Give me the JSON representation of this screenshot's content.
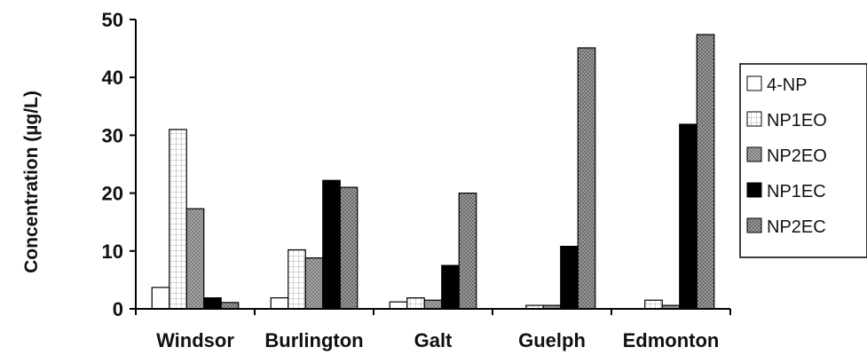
{
  "chart_data": {
    "type": "bar",
    "title": "",
    "xlabel": "",
    "ylabel": "Concentration (µg/L)",
    "ylim": [
      0,
      50
    ],
    "yticks": [
      0,
      10,
      20,
      30,
      40,
      50
    ],
    "grid": false,
    "legend_position": "right",
    "categories": [
      "Windsor",
      "Burlington",
      "Galt",
      "Guelph",
      "Edmonton"
    ],
    "series": [
      {
        "name": "4-NP",
        "values": [
          3.7,
          1.9,
          1.2,
          0.0,
          0.0
        ],
        "fill": "white",
        "color": "#ffffff"
      },
      {
        "name": "NP1EO",
        "values": [
          31.0,
          10.2,
          1.9,
          0.6,
          1.5
        ],
        "fill": "grid",
        "color": "#ffffff"
      },
      {
        "name": "NP2EO",
        "values": [
          17.3,
          8.8,
          1.5,
          0.6,
          0.6
        ],
        "fill": "dots",
        "color": "#9a9a9a"
      },
      {
        "name": "NP1EC",
        "values": [
          1.9,
          22.2,
          7.5,
          10.8,
          31.9
        ],
        "fill": "black",
        "color": "#000000"
      },
      {
        "name": "NP2EC",
        "values": [
          1.1,
          21.0,
          20.0,
          45.1,
          47.4
        ],
        "fill": "dots",
        "color": "#8c8c8c"
      }
    ]
  }
}
